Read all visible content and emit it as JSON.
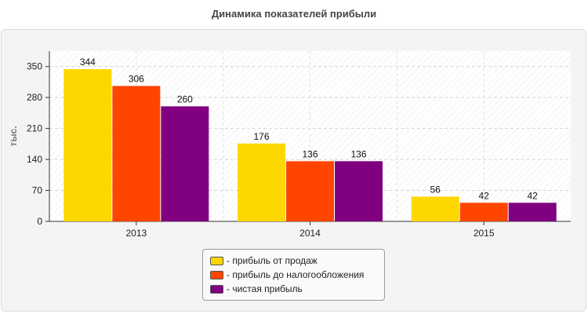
{
  "chart_data": {
    "type": "bar",
    "title": "Динамика показателей прибыли",
    "xlabel": "",
    "ylabel": "тыс.",
    "categories": [
      "2013",
      "2014",
      "2015"
    ],
    "ylim": [
      0,
      385
    ],
    "yticks": [
      0,
      70,
      140,
      210,
      280,
      350
    ],
    "grid": true,
    "legend_position": "bottom",
    "series": [
      {
        "name": "- прибыль от продаж",
        "color": "#FFD700",
        "values": [
          344,
          176,
          56
        ]
      },
      {
        "name": "- прибыль до налогообложения",
        "color": "#FF4500",
        "values": [
          306,
          136,
          42
        ]
      },
      {
        "name": "- чистая прибыль",
        "color": "#800080",
        "values": [
          260,
          136,
          42
        ]
      }
    ]
  }
}
